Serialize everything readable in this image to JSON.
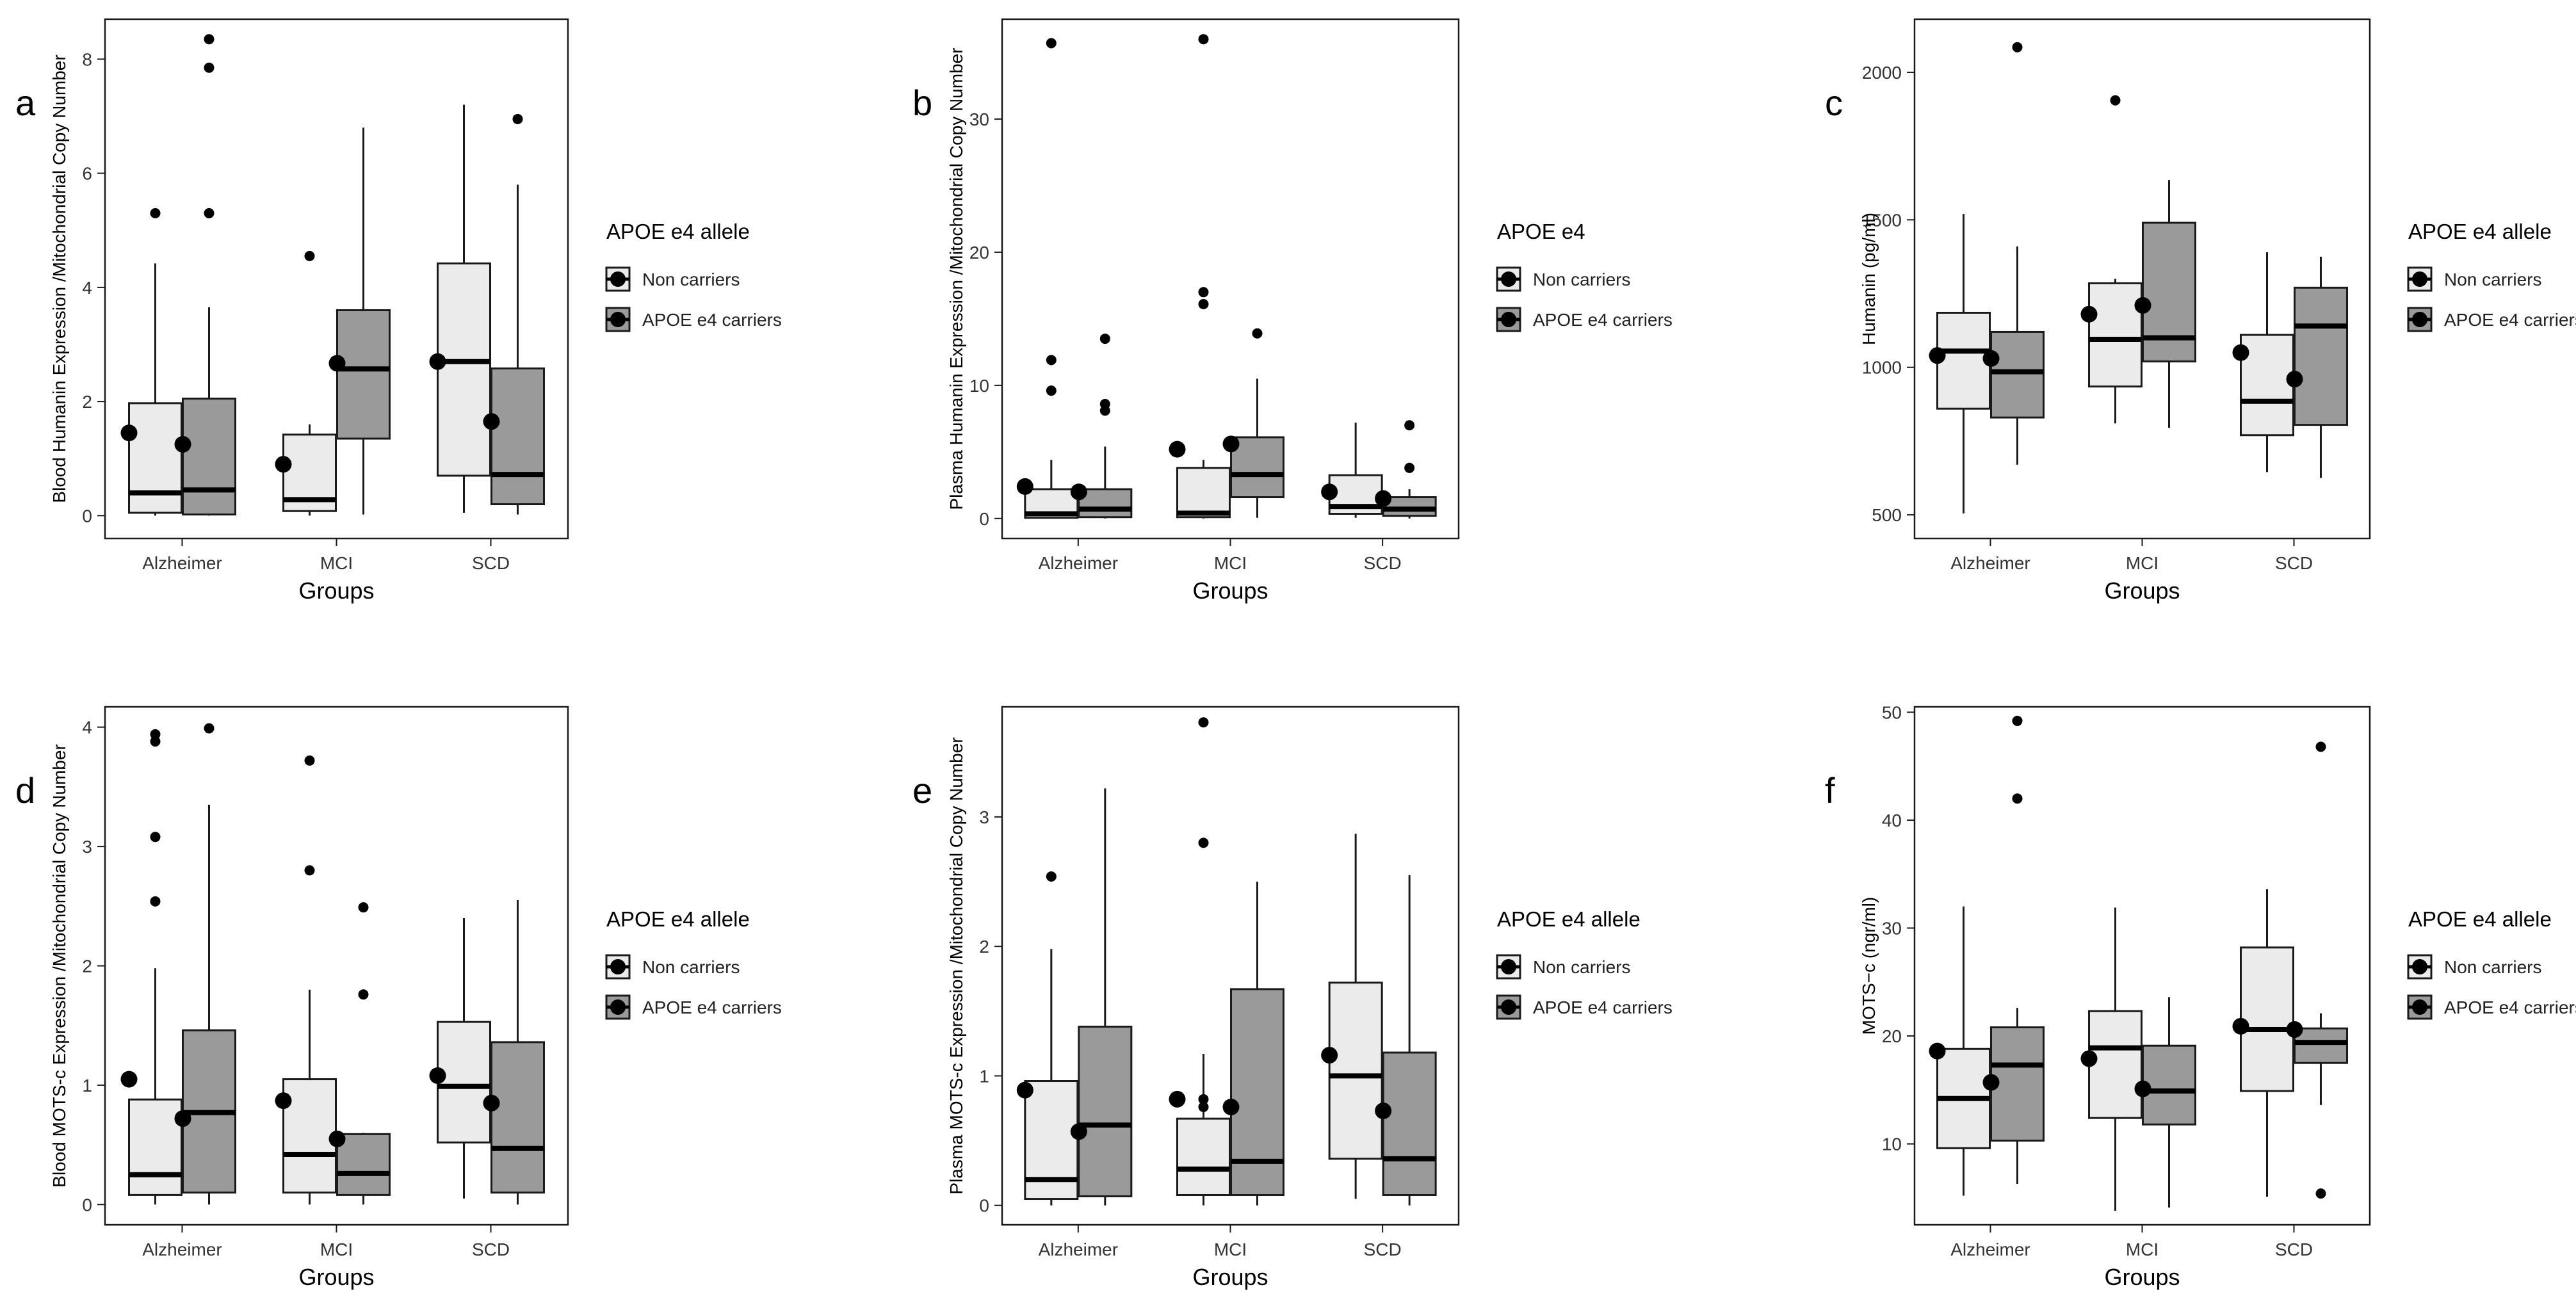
{
  "colors": {
    "non_carriers_fill": "#ebebeb",
    "carriers_fill": "#9a9a9a",
    "stroke": "#1a1a1a",
    "background": "#ffffff"
  },
  "legend_entries": [
    "Non carriers",
    "APOE e4 carriers"
  ],
  "chart_data": [
    {
      "type": "boxplot",
      "panel_label": "a",
      "ylabel": "Blood Humanin Expression /Mitochondrial Copy Number",
      "xlabel": "Groups",
      "categories": [
        "Alzheimer",
        "MCI",
        "SCD"
      ],
      "ylim": [
        -0.4,
        8.7
      ],
      "yticks": [
        0,
        2,
        4,
        6,
        8
      ],
      "legend_title": "APOE e4 allele",
      "series": [
        {
          "name": "Non carriers",
          "boxes": [
            {
              "q1": 0.05,
              "median": 0.4,
              "q3": 1.97,
              "lower": 0.0,
              "upper": 4.42,
              "outliers": [
                5.3
              ],
              "mean": 1.45
            },
            {
              "q1": 0.08,
              "median": 0.28,
              "q3": 1.42,
              "lower": 0.0,
              "upper": 1.6,
              "outliers": [
                4.55
              ],
              "mean": 0.9
            },
            {
              "q1": 0.7,
              "median": 2.7,
              "q3": 4.42,
              "lower": 0.05,
              "upper": 7.2,
              "outliers": [],
              "mean": 2.7
            }
          ]
        },
        {
          "name": "APOE e4 carriers",
          "boxes": [
            {
              "q1": 0.02,
              "median": 0.45,
              "q3": 2.05,
              "lower": 0.0,
              "upper": 3.65,
              "outliers": [
                8.35,
                7.85,
                5.3
              ],
              "mean": 1.25
            },
            {
              "q1": 1.35,
              "median": 2.57,
              "q3": 3.6,
              "lower": 0.02,
              "upper": 6.8,
              "outliers": [],
              "mean": 2.67
            },
            {
              "q1": 0.2,
              "median": 0.72,
              "q3": 2.58,
              "lower": 0.02,
              "upper": 5.8,
              "outliers": [
                6.95
              ],
              "mean": 1.65
            }
          ]
        }
      ]
    },
    {
      "type": "boxplot",
      "panel_label": "b",
      "ylabel": "Plasma Humanin Expression /Mitochondrial Copy Number",
      "xlabel": "Groups",
      "categories": [
        "Alzheimer",
        "MCI",
        "SCD"
      ],
      "ylim": [
        -1.5,
        37.5
      ],
      "yticks": [
        0,
        10,
        20,
        30
      ],
      "legend_title": "APOE e4",
      "series": [
        {
          "name": "Non carriers",
          "boxes": [
            {
              "q1": 0.05,
              "median": 0.35,
              "q3": 2.2,
              "lower": 0.0,
              "upper": 4.4,
              "outliers": [
                35.7,
                11.9,
                9.6
              ],
              "mean": 2.4
            },
            {
              "q1": 0.1,
              "median": 0.4,
              "q3": 3.8,
              "lower": 0.0,
              "upper": 4.4,
              "outliers": [
                36.0,
                17.0,
                16.1
              ],
              "mean": 5.2
            },
            {
              "q1": 0.35,
              "median": 0.9,
              "q3": 3.25,
              "lower": 0.05,
              "upper": 7.2,
              "outliers": [],
              "mean": 2.0
            }
          ]
        },
        {
          "name": "APOE e4 carriers",
          "boxes": [
            {
              "q1": 0.1,
              "median": 0.7,
              "q3": 2.2,
              "lower": 0.0,
              "upper": 5.4,
              "outliers": [
                13.5,
                8.6,
                8.1
              ],
              "mean": 2.0
            },
            {
              "q1": 1.6,
              "median": 3.3,
              "q3": 6.1,
              "lower": 0.05,
              "upper": 10.5,
              "outliers": [
                13.9
              ],
              "mean": 5.6
            },
            {
              "q1": 0.2,
              "median": 0.7,
              "q3": 1.6,
              "lower": 0.0,
              "upper": 2.2,
              "outliers": [
                7.0,
                3.8
              ],
              "mean": 1.5
            }
          ]
        }
      ]
    },
    {
      "type": "boxplot",
      "panel_label": "c",
      "ylabel": "Humanin (pg/ml)",
      "xlabel": "Groups",
      "categories": [
        "Alzheimer",
        "MCI",
        "SCD"
      ],
      "ylim": [
        420,
        2180
      ],
      "yticks": [
        500,
        1000,
        1500,
        2000
      ],
      "legend_title": "APOE e4 allele",
      "series": [
        {
          "name": "Non carriers",
          "boxes": [
            {
              "q1": 860,
              "median": 1055,
              "q3": 1185,
              "lower": 505,
              "upper": 1520,
              "outliers": [],
              "mean": 1040
            },
            {
              "q1": 935,
              "median": 1095,
              "q3": 1285,
              "lower": 810,
              "upper": 1300,
              "outliers": [
                1905
              ],
              "mean": 1180
            },
            {
              "q1": 770,
              "median": 885,
              "q3": 1110,
              "lower": 645,
              "upper": 1390,
              "outliers": [],
              "mean": 1050
            }
          ]
        },
        {
          "name": "APOE e4 carriers",
          "boxes": [
            {
              "q1": 830,
              "median": 985,
              "q3": 1120,
              "lower": 670,
              "upper": 1410,
              "outliers": [
                2085
              ],
              "mean": 1030
            },
            {
              "q1": 1020,
              "median": 1100,
              "q3": 1490,
              "lower": 795,
              "upper": 1635,
              "outliers": [],
              "mean": 1210
            },
            {
              "q1": 805,
              "median": 1140,
              "q3": 1270,
              "lower": 625,
              "upper": 1375,
              "outliers": [],
              "mean": 960
            }
          ]
        }
      ]
    },
    {
      "type": "boxplot",
      "panel_label": "d",
      "ylabel": "Blood MOTS-c Expression /Mitochondrial Copy Number",
      "xlabel": "Groups",
      "categories": [
        "Alzheimer",
        "MCI",
        "SCD"
      ],
      "ylim": [
        -0.17,
        4.17
      ],
      "yticks": [
        0,
        1,
        2,
        3,
        4
      ],
      "legend_title": "APOE e4 allele",
      "series": [
        {
          "name": "Non carriers",
          "boxes": [
            {
              "q1": 0.08,
              "median": 0.25,
              "q3": 0.88,
              "lower": 0.0,
              "upper": 1.98,
              "outliers": [
                3.94,
                3.88,
                3.08,
                2.54
              ],
              "mean": 1.05
            },
            {
              "q1": 0.1,
              "median": 0.42,
              "q3": 1.05,
              "lower": 0.0,
              "upper": 1.8,
              "outliers": [
                3.72,
                2.8
              ],
              "mean": 0.87
            },
            {
              "q1": 0.52,
              "median": 0.99,
              "q3": 1.53,
              "lower": 0.05,
              "upper": 2.4,
              "outliers": [],
              "mean": 1.08
            }
          ]
        },
        {
          "name": "APOE e4 carriers",
          "boxes": [
            {
              "q1": 0.1,
              "median": 0.77,
              "q3": 1.46,
              "lower": 0.0,
              "upper": 3.35,
              "outliers": [
                3.99
              ],
              "mean": 0.72
            },
            {
              "q1": 0.08,
              "median": 0.26,
              "q3": 0.59,
              "lower": 0.0,
              "upper": 0.6,
              "outliers": [
                2.49,
                1.76
              ],
              "mean": 0.55
            },
            {
              "q1": 0.1,
              "median": 0.47,
              "q3": 1.36,
              "lower": 0.0,
              "upper": 2.55,
              "outliers": [],
              "mean": 0.85
            }
          ]
        }
      ]
    },
    {
      "type": "boxplot",
      "panel_label": "e",
      "ylabel": "Plasma MOTS-c Expression /Mitochondrial Copy Number",
      "xlabel": "Groups",
      "categories": [
        "Alzheimer",
        "MCI",
        "SCD"
      ],
      "ylim": [
        -0.15,
        3.85
      ],
      "yticks": [
        0,
        1,
        2,
        3
      ],
      "legend_title": "APOE e4 allele",
      "series": [
        {
          "name": "Non carriers",
          "boxes": [
            {
              "q1": 0.05,
              "median": 0.2,
              "q3": 0.96,
              "lower": 0.0,
              "upper": 1.98,
              "outliers": [
                2.54
              ],
              "mean": 0.89
            },
            {
              "q1": 0.08,
              "median": 0.28,
              "q3": 0.67,
              "lower": 0.0,
              "upper": 1.17,
              "outliers": [
                3.73,
                2.8,
                0.82,
                0.76
              ],
              "mean": 0.82
            },
            {
              "q1": 0.36,
              "median": 1.0,
              "q3": 1.72,
              "lower": 0.05,
              "upper": 2.87,
              "outliers": [],
              "mean": 1.16
            }
          ]
        },
        {
          "name": "APOE e4 carriers",
          "boxes": [
            {
              "q1": 0.07,
              "median": 0.62,
              "q3": 1.38,
              "lower": 0.0,
              "upper": 3.22,
              "outliers": [],
              "mean": 0.57
            },
            {
              "q1": 0.08,
              "median": 0.34,
              "q3": 1.67,
              "lower": 0.0,
              "upper": 2.5,
              "outliers": [],
              "mean": 0.76
            },
            {
              "q1": 0.08,
              "median": 0.36,
              "q3": 1.18,
              "lower": 0.0,
              "upper": 2.55,
              "outliers": [],
              "mean": 0.73
            }
          ]
        }
      ]
    },
    {
      "type": "boxplot",
      "panel_label": "f",
      "ylabel": "MOTS−c (ngr/ml)",
      "xlabel": "Groups",
      "categories": [
        "Alzheimer",
        "MCI",
        "SCD"
      ],
      "ylim": [
        2.5,
        50.5
      ],
      "yticks": [
        10,
        20,
        30,
        40,
        50
      ],
      "legend_title": "APOE e4 allele",
      "series": [
        {
          "name": "Non carriers",
          "boxes": [
            {
              "q1": 9.6,
              "median": 14.2,
              "q3": 18.8,
              "lower": 5.2,
              "upper": 32.0,
              "outliers": [],
              "mean": 18.6
            },
            {
              "q1": 12.4,
              "median": 18.9,
              "q3": 22.3,
              "lower": 3.8,
              "upper": 31.9,
              "outliers": [],
              "mean": 17.9
            },
            {
              "q1": 14.9,
              "median": 20.6,
              "q3": 28.2,
              "lower": 5.1,
              "upper": 33.6,
              "outliers": [],
              "mean": 20.9
            }
          ]
        },
        {
          "name": "APOE e4 carriers",
          "boxes": [
            {
              "q1": 10.3,
              "median": 17.3,
              "q3": 20.8,
              "lower": 6.3,
              "upper": 22.6,
              "outliers": [
                49.2,
                42.0
              ],
              "mean": 15.7
            },
            {
              "q1": 11.8,
              "median": 14.9,
              "q3": 19.1,
              "lower": 4.1,
              "upper": 23.6,
              "outliers": [],
              "mean": 15.1
            },
            {
              "q1": 17.5,
              "median": 19.4,
              "q3": 20.7,
              "lower": 13.6,
              "upper": 22.1,
              "outliers": [
                46.8,
                5.4
              ],
              "mean": 20.6
            }
          ]
        }
      ]
    }
  ]
}
